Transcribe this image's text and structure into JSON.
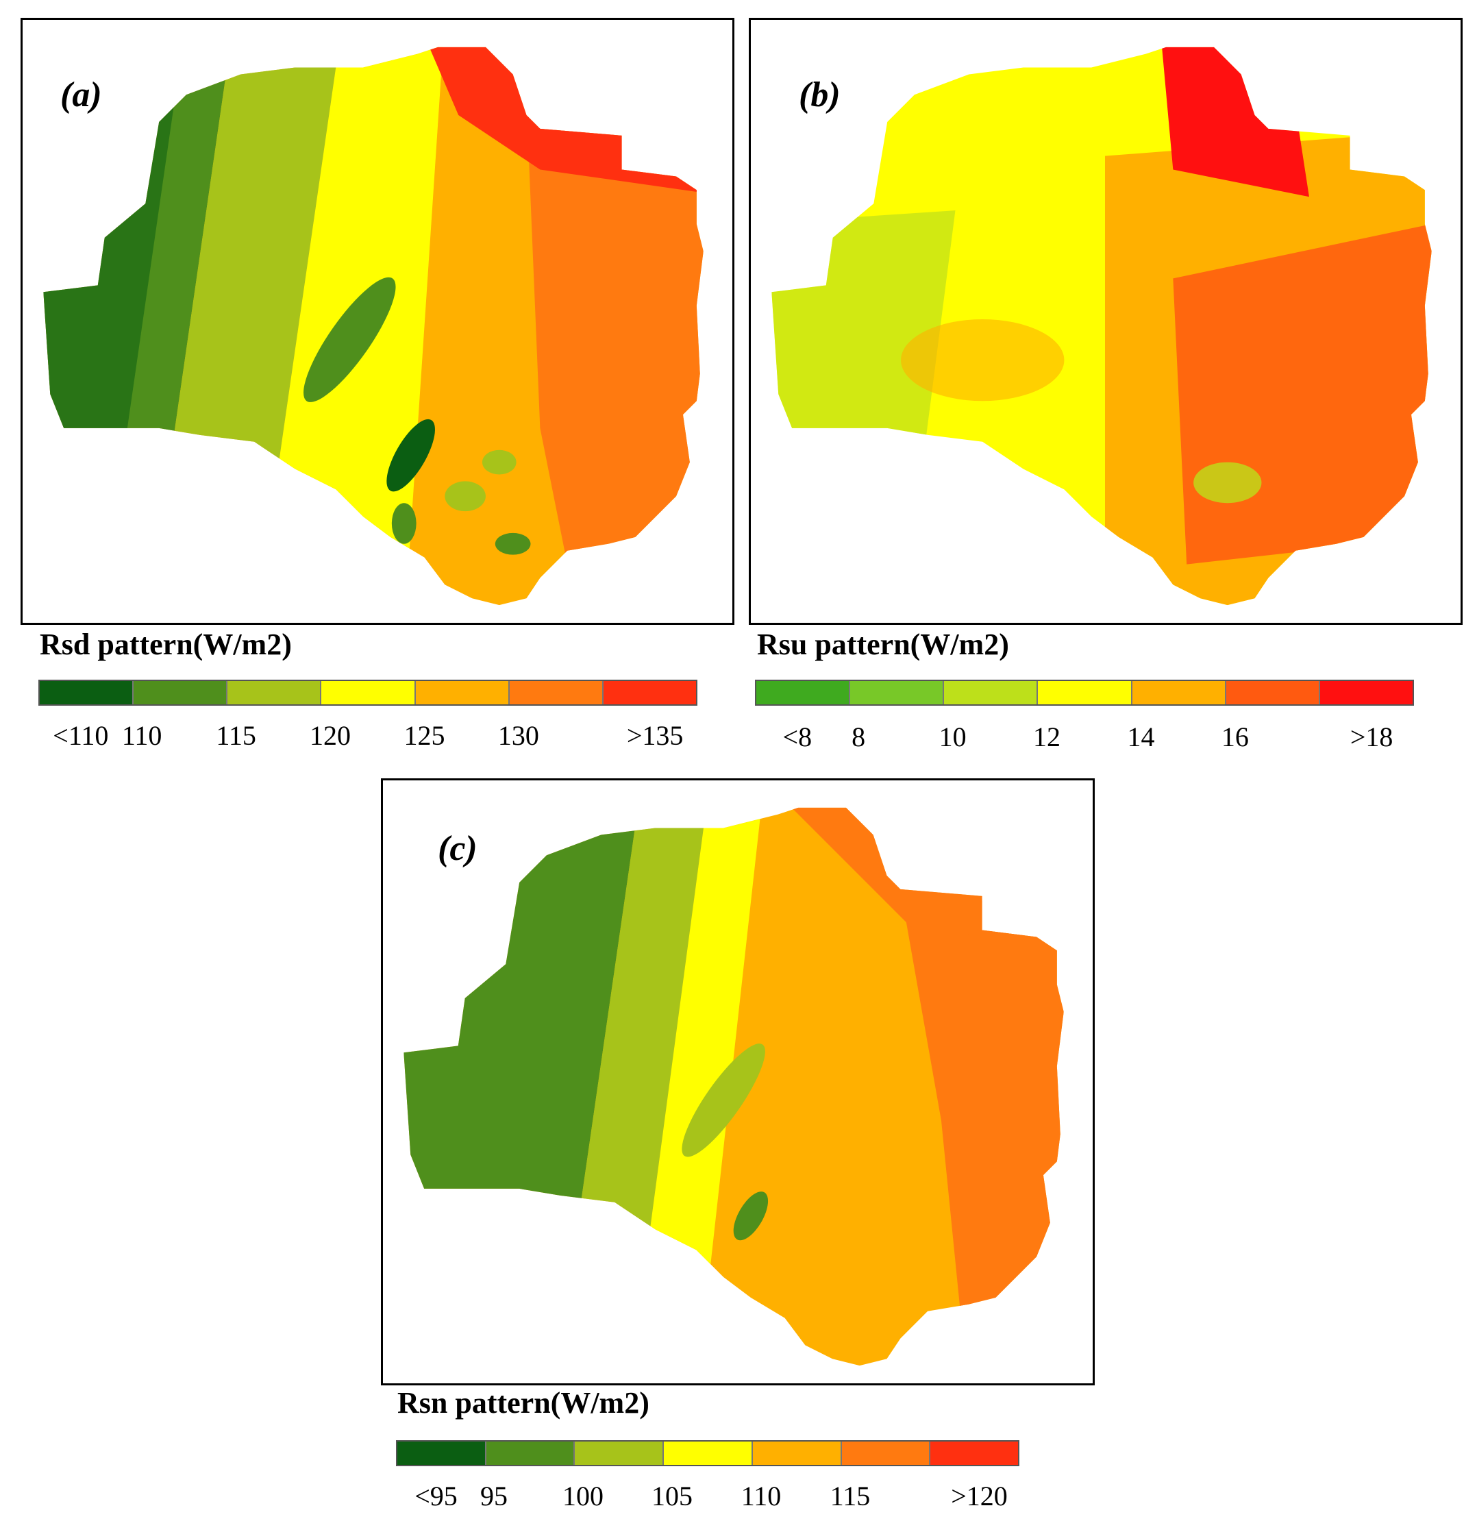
{
  "panels": [
    {
      "id": "a",
      "label": "(a)",
      "legend_title": "Rsd pattern(W/m2)",
      "colors": [
        "#0b5e12",
        "#4f8f1c",
        "#a7c31a",
        "#ffff00",
        "#ffb000",
        "#ff7a10",
        "#ff3010"
      ],
      "ticks": [
        "<110",
        "110",
        "115",
        "120",
        "125",
        "130",
        ">135"
      ]
    },
    {
      "id": "b",
      "label": "(b)",
      "legend_title": "Rsu pattern(W/m2)",
      "colors": [
        "#3faa1f",
        "#78c828",
        "#bde01a",
        "#ffff00",
        "#ffb000",
        "#ff5a10",
        "#ff1010"
      ],
      "ticks": [
        "<8",
        "8",
        "10",
        "12",
        "14",
        "16",
        ">18"
      ]
    },
    {
      "id": "c",
      "label": "(c)",
      "legend_title": "Rsn pattern(W/m2)",
      "colors": [
        "#0b5e12",
        "#4f8f1c",
        "#a7c31a",
        "#ffff00",
        "#ffb000",
        "#ff7a10",
        "#ff3010"
      ],
      "ticks": [
        "<95",
        "95",
        "100",
        "105",
        "110",
        "115",
        ">120"
      ]
    }
  ]
}
